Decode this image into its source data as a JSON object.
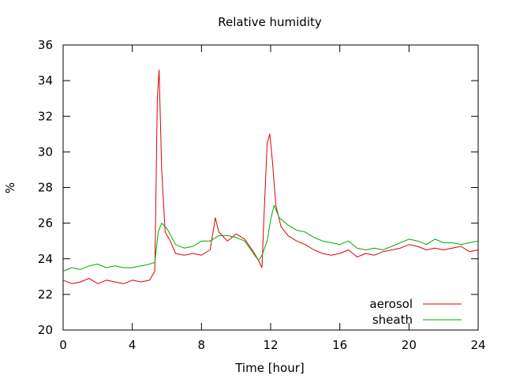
{
  "chart_data": {
    "type": "line",
    "title": "Relative humidity",
    "xlabel": "Time [hour]",
    "ylabel": "%",
    "xlim": [
      0,
      24
    ],
    "ylim": [
      20,
      36
    ],
    "xticks": [
      0,
      4,
      8,
      12,
      16,
      20,
      24
    ],
    "yticks": [
      20,
      22,
      24,
      26,
      28,
      30,
      32,
      34,
      36
    ],
    "grid": false,
    "legend_position": "bottom-right",
    "series": [
      {
        "name": "aerosol",
        "color": "#dd0000",
        "x": [
          0,
          0.5,
          1,
          1.5,
          2,
          2.5,
          3,
          3.5,
          4,
          4.5,
          5,
          5.3,
          5.45,
          5.55,
          5.7,
          5.9,
          6.2,
          6.5,
          7,
          7.5,
          8,
          8.5,
          8.8,
          9,
          9.5,
          10,
          10.5,
          11,
          11.3,
          11.5,
          11.6,
          11.8,
          11.95,
          12.1,
          12.3,
          12.6,
          13,
          13.5,
          14,
          14.5,
          15,
          15.5,
          16,
          16.5,
          17,
          17.5,
          18,
          18.5,
          19,
          19.5,
          20,
          20.5,
          21,
          21.5,
          22,
          22.5,
          23,
          23.5,
          24
        ],
        "values": [
          22.8,
          22.6,
          22.7,
          22.9,
          22.6,
          22.8,
          22.7,
          22.6,
          22.8,
          22.7,
          22.8,
          23.3,
          33.0,
          34.6,
          29.0,
          25.5,
          25.0,
          24.3,
          24.2,
          24.3,
          24.2,
          24.5,
          26.3,
          25.5,
          25.0,
          25.4,
          25.1,
          24.4,
          23.9,
          23.5,
          26.0,
          30.5,
          31.0,
          29.5,
          27.0,
          25.8,
          25.3,
          25.0,
          24.8,
          24.5,
          24.3,
          24.2,
          24.3,
          24.5,
          24.1,
          24.3,
          24.2,
          24.4,
          24.5,
          24.6,
          24.8,
          24.7,
          24.5,
          24.6,
          24.5,
          24.6,
          24.7,
          24.4,
          24.5
        ]
      },
      {
        "name": "sheath",
        "color": "#00aa00",
        "x": [
          0,
          0.5,
          1,
          1.5,
          2,
          2.5,
          3,
          3.5,
          4,
          4.5,
          5,
          5.3,
          5.5,
          5.7,
          6,
          6.5,
          7,
          7.5,
          8,
          8.5,
          9,
          9.5,
          10,
          10.5,
          11,
          11.3,
          11.5,
          11.8,
          12,
          12.2,
          12.5,
          13,
          13.5,
          14,
          14.5,
          15,
          15.5,
          16,
          16.5,
          17,
          17.5,
          18,
          18.5,
          19,
          19.5,
          20,
          20.5,
          21,
          21.5,
          22,
          22.5,
          23,
          23.5,
          24
        ],
        "values": [
          23.3,
          23.5,
          23.4,
          23.6,
          23.7,
          23.5,
          23.6,
          23.5,
          23.5,
          23.6,
          23.7,
          23.8,
          25.5,
          26.0,
          25.7,
          24.8,
          24.6,
          24.7,
          25.0,
          25.0,
          25.3,
          25.3,
          25.2,
          25.0,
          24.3,
          23.9,
          24.2,
          25.0,
          26.2,
          27.0,
          26.3,
          25.9,
          25.6,
          25.5,
          25.2,
          25.0,
          24.9,
          24.8,
          25.0,
          24.6,
          24.5,
          24.6,
          24.5,
          24.7,
          24.9,
          25.1,
          25.0,
          24.8,
          25.1,
          24.9,
          24.9,
          24.8,
          24.9,
          25.0
        ]
      }
    ]
  }
}
